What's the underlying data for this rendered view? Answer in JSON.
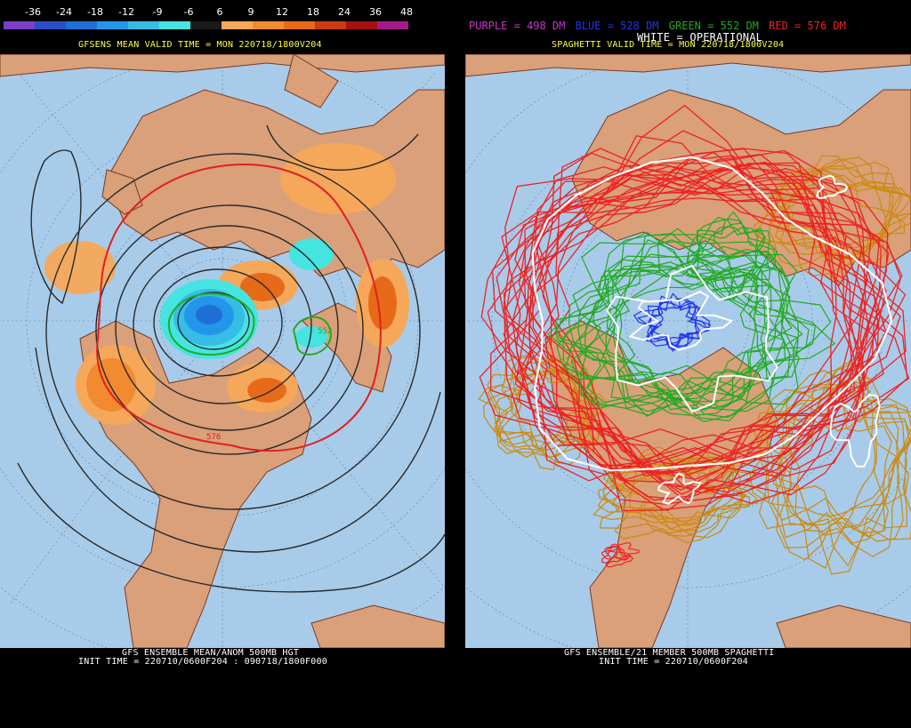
{
  "left": {
    "colorbar_labels": [
      "-36",
      "-24",
      "-18",
      "-12",
      "-9",
      "-6",
      "6",
      "9",
      "12",
      "18",
      "24",
      "36",
      "48"
    ],
    "colorbar_colors": [
      "#7a3ec8",
      "#2a4fc6",
      "#1f6fd8",
      "#2496ea",
      "#36bde6",
      "#46e4e0",
      "#1a1a1a",
      "#f5a85a",
      "#f28a30",
      "#e66a18",
      "#cc3a12",
      "#a51010",
      "#a51a8a"
    ],
    "title": "GFSENS MEAN VALID TIME = MON 220718/1800V204",
    "footer_line1": "GFS ENSEMBLE MEAN/ANOM 500MB HGT",
    "footer_line2": "INIT TIME = 220710/0600F204 : 090718/1800F000",
    "map_labels": {
      "green_contour": "552",
      "red_contour": "576"
    }
  },
  "right": {
    "legend": [
      {
        "text": "PURPLE = 498 DM",
        "color": "#cc33cc"
      },
      {
        "text": "BLUE = 528 DM",
        "color": "#2233ee"
      },
      {
        "text": "GREEN = 552 DM",
        "color": "#22aa22"
      },
      {
        "text": "RED = 576 DM",
        "color": "#ee2222"
      }
    ],
    "operational_label": "WHITE = OPERATIONAL",
    "title": "SPAGHETTI VALID TIME = MON 220718/1800V204",
    "footer_line1": "GFS ENSEMBLE/21 MEMBER 500MB SPAGHETTI",
    "footer_line2": "INIT TIME = 220710/0600F204"
  },
  "colors": {
    "ocean": "#a8cbea",
    "land": "#d9a07a",
    "border": "#7a3a20"
  }
}
